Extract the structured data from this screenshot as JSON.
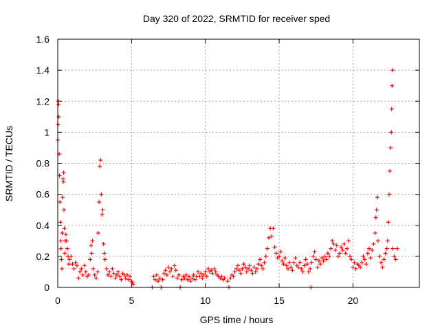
{
  "chart_data": {
    "type": "scatter",
    "title": "Day 320 of 2022, SRMTID for receiver sped",
    "xlabel": "GPS time / hours",
    "ylabel": "SRMTID / TECUs",
    "xlim": [
      0,
      24.5
    ],
    "ylim": [
      0,
      1.6
    ],
    "x_ticks": [
      0,
      5,
      10,
      15,
      20
    ],
    "x_tick_labels": [
      "0",
      "5",
      "10",
      "15",
      "20"
    ],
    "y_ticks": [
      0,
      0.2,
      0.4,
      0.6,
      0.8,
      1.0,
      1.2,
      1.4,
      1.6
    ],
    "y_tick_labels": [
      "0",
      "0.2",
      "0.4",
      "0.6",
      "0.8",
      "1",
      "1.2",
      "1.4",
      "1.6"
    ],
    "grid": true,
    "marker": "+",
    "color": "#ff0000",
    "series": [
      {
        "name": "SRMTID",
        "points": [
          [
            0.0,
            0.95
          ],
          [
            0.02,
            1.05
          ],
          [
            0.04,
            1.2
          ],
          [
            0.05,
            1.18
          ],
          [
            0.07,
            1.1
          ],
          [
            0.1,
            0.86
          ],
          [
            0.12,
            0.72
          ],
          [
            0.15,
            0.55
          ],
          [
            0.18,
            0.42
          ],
          [
            0.2,
            0.3
          ],
          [
            0.22,
            0.25
          ],
          [
            0.25,
            0.18
          ],
          [
            0.28,
            0.12
          ],
          [
            0.3,
            0.35
          ],
          [
            0.33,
            0.58
          ],
          [
            0.36,
            0.7
          ],
          [
            0.38,
            0.68
          ],
          [
            0.4,
            0.74
          ],
          [
            0.42,
            0.5
          ],
          [
            0.45,
            0.38
          ],
          [
            0.48,
            0.22
          ],
          [
            0.5,
            0.3
          ],
          [
            0.55,
            0.34
          ],
          [
            0.6,
            0.3
          ],
          [
            0.65,
            0.25
          ],
          [
            0.7,
            0.2
          ],
          [
            0.75,
            0.15
          ],
          [
            0.8,
            0.18
          ],
          [
            0.9,
            0.2
          ],
          [
            1.0,
            0.15
          ],
          [
            1.1,
            0.12
          ],
          [
            1.2,
            0.16
          ],
          [
            1.3,
            0.14
          ],
          [
            1.4,
            0.06
          ],
          [
            1.5,
            0.1
          ],
          [
            1.6,
            0.12
          ],
          [
            1.7,
            0.08
          ],
          [
            1.8,
            0.14
          ],
          [
            1.9,
            0.1
          ],
          [
            2.0,
            0.07
          ],
          [
            2.1,
            0.08
          ],
          [
            2.2,
            0.18
          ],
          [
            2.25,
            0.27
          ],
          [
            2.3,
            0.22
          ],
          [
            2.35,
            0.3
          ],
          [
            2.4,
            0.12
          ],
          [
            2.5,
            0.08
          ],
          [
            2.6,
            0.06
          ],
          [
            2.7,
            0.1
          ],
          [
            2.75,
            0.35
          ],
          [
            2.8,
            0.55
          ],
          [
            2.85,
            0.78
          ],
          [
            2.9,
            0.82
          ],
          [
            2.95,
            0.6
          ],
          [
            3.0,
            0.47
          ],
          [
            3.05,
            0.5
          ],
          [
            3.1,
            0.28
          ],
          [
            3.15,
            0.22
          ],
          [
            3.2,
            0.18
          ],
          [
            3.3,
            0.12
          ],
          [
            3.4,
            0.08
          ],
          [
            3.5,
            0.1
          ],
          [
            3.6,
            0.07
          ],
          [
            3.7,
            0.12
          ],
          [
            3.8,
            0.09
          ],
          [
            3.9,
            0.06
          ],
          [
            4.0,
            0.08
          ],
          [
            4.1,
            0.1
          ],
          [
            4.2,
            0.07
          ],
          [
            4.3,
            0.05
          ],
          [
            4.4,
            0.09
          ],
          [
            4.5,
            0.08
          ],
          [
            4.6,
            0.06
          ],
          [
            4.7,
            0.08
          ],
          [
            4.8,
            0.05
          ],
          [
            4.9,
            0.07
          ],
          [
            5.0,
            0.04
          ],
          [
            5.05,
            0.03
          ],
          [
            5.1,
            0.02
          ],
          [
            6.4,
            0.0
          ],
          [
            6.5,
            0.07
          ],
          [
            6.6,
            0.05
          ],
          [
            6.7,
            0.08
          ],
          [
            6.8,
            0.04
          ],
          [
            6.9,
            0.06
          ],
          [
            7.0,
            0.0
          ],
          [
            7.1,
            0.05
          ],
          [
            7.2,
            0.09
          ],
          [
            7.3,
            0.11
          ],
          [
            7.4,
            0.08
          ],
          [
            7.5,
            0.13
          ],
          [
            7.6,
            0.1
          ],
          [
            7.7,
            0.12
          ],
          [
            7.8,
            0.07
          ],
          [
            7.9,
            0.14
          ],
          [
            8.0,
            0.11
          ],
          [
            8.1,
            0.06
          ],
          [
            8.2,
            0.08
          ],
          [
            8.3,
            0.0
          ],
          [
            8.4,
            0.05
          ],
          [
            8.5,
            0.07
          ],
          [
            8.6,
            0.06
          ],
          [
            8.7,
            0.08
          ],
          [
            8.8,
            0.05
          ],
          [
            8.9,
            0.07
          ],
          [
            9.0,
            0.04
          ],
          [
            9.1,
            0.06
          ],
          [
            9.2,
            0.08
          ],
          [
            9.3,
            0.05
          ],
          [
            9.4,
            0.07
          ],
          [
            9.5,
            0.1
          ],
          [
            9.6,
            0.07
          ],
          [
            9.7,
            0.09
          ],
          [
            9.8,
            0.06
          ],
          [
            9.9,
            0.08
          ],
          [
            10.0,
            0.1
          ],
          [
            10.1,
            0.07
          ],
          [
            10.2,
            0.12
          ],
          [
            10.3,
            0.1
          ],
          [
            10.4,
            0.11
          ],
          [
            10.5,
            0.09
          ],
          [
            10.6,
            0.12
          ],
          [
            10.7,
            0.1
          ],
          [
            10.8,
            0.08
          ],
          [
            10.9,
            0.07
          ],
          [
            11.0,
            0.06
          ],
          [
            11.1,
            0.07
          ],
          [
            11.2,
            0.05
          ],
          [
            11.3,
            0.06
          ],
          [
            11.5,
            0.04
          ],
          [
            11.6,
            0.0
          ],
          [
            11.7,
            0.06
          ],
          [
            11.8,
            0.08
          ],
          [
            11.9,
            0.07
          ],
          [
            12.0,
            0.1
          ],
          [
            12.1,
            0.12
          ],
          [
            12.2,
            0.14
          ],
          [
            12.3,
            0.11
          ],
          [
            12.4,
            0.09
          ],
          [
            12.5,
            0.12
          ],
          [
            12.6,
            0.15
          ],
          [
            12.7,
            0.13
          ],
          [
            12.8,
            0.1
          ],
          [
            12.9,
            0.12
          ],
          [
            13.0,
            0.14
          ],
          [
            13.1,
            0.11
          ],
          [
            13.2,
            0.09
          ],
          [
            13.3,
            0.13
          ],
          [
            13.4,
            0.1
          ],
          [
            13.5,
            0.12
          ],
          [
            13.6,
            0.15
          ],
          [
            13.7,
            0.18
          ],
          [
            13.8,
            0.14
          ],
          [
            13.9,
            0.12
          ],
          [
            14.0,
            0.16
          ],
          [
            14.1,
            0.2
          ],
          [
            14.2,
            0.25
          ],
          [
            14.3,
            0.32
          ],
          [
            14.4,
            0.38
          ],
          [
            14.5,
            0.33
          ],
          [
            14.6,
            0.38
          ],
          [
            14.7,
            0.26
          ],
          [
            14.8,
            0.22
          ],
          [
            14.9,
            0.19
          ],
          [
            15.0,
            0.2
          ],
          [
            15.1,
            0.23
          ],
          [
            15.2,
            0.17
          ],
          [
            15.3,
            0.15
          ],
          [
            15.4,
            0.19
          ],
          [
            15.5,
            0.14
          ],
          [
            15.6,
            0.12
          ],
          [
            15.7,
            0.16
          ],
          [
            15.8,
            0.13
          ],
          [
            15.9,
            0.11
          ],
          [
            16.0,
            0.16
          ],
          [
            16.1,
            0.19
          ],
          [
            16.2,
            0.14
          ],
          [
            16.3,
            0.13
          ],
          [
            16.4,
            0.16
          ],
          [
            16.5,
            0.12
          ],
          [
            16.6,
            0.1
          ],
          [
            16.7,
            0.14
          ],
          [
            16.8,
            0.18
          ],
          [
            16.9,
            0.15
          ],
          [
            17.0,
            0.1
          ],
          [
            17.1,
            0.12
          ],
          [
            17.15,
            0.0
          ],
          [
            17.2,
            0.16
          ],
          [
            17.3,
            0.2
          ],
          [
            17.4,
            0.23
          ],
          [
            17.5,
            0.18
          ],
          [
            17.6,
            0.13
          ],
          [
            17.7,
            0.17
          ],
          [
            17.8,
            0.15
          ],
          [
            17.9,
            0.19
          ],
          [
            18.0,
            0.17
          ],
          [
            18.1,
            0.2
          ],
          [
            18.2,
            0.18
          ],
          [
            18.3,
            0.22
          ],
          [
            18.4,
            0.2
          ],
          [
            18.5,
            0.25
          ],
          [
            18.6,
            0.3
          ],
          [
            18.7,
            0.28
          ],
          [
            18.8,
            0.24
          ],
          [
            18.9,
            0.27
          ],
          [
            19.0,
            0.2
          ],
          [
            19.1,
            0.22
          ],
          [
            19.2,
            0.26
          ],
          [
            19.3,
            0.24
          ],
          [
            19.4,
            0.28
          ],
          [
            19.5,
            0.22
          ],
          [
            19.6,
            0.25
          ],
          [
            19.7,
            0.3
          ],
          [
            19.8,
            0.2
          ],
          [
            19.9,
            0.18
          ],
          [
            20.0,
            0.13
          ],
          [
            20.1,
            0.16
          ],
          [
            20.2,
            0.12
          ],
          [
            20.3,
            0.15
          ],
          [
            20.4,
            0.14
          ],
          [
            20.5,
            0.13
          ],
          [
            20.6,
            0.16
          ],
          [
            20.7,
            0.2
          ],
          [
            20.8,
            0.18
          ],
          [
            20.9,
            0.15
          ],
          [
            21.0,
            0.22
          ],
          [
            21.1,
            0.25
          ],
          [
            21.2,
            0.19
          ],
          [
            21.3,
            0.24
          ],
          [
            21.4,
            0.28
          ],
          [
            21.5,
            0.35
          ],
          [
            21.55,
            0.45
          ],
          [
            21.6,
            0.5
          ],
          [
            21.65,
            0.58
          ],
          [
            21.7,
            0.3
          ],
          [
            21.8,
            0.2
          ],
          [
            21.9,
            0.16
          ],
          [
            22.0,
            0.13
          ],
          [
            22.1,
            0.18
          ],
          [
            22.2,
            0.22
          ],
          [
            22.3,
            0.25
          ],
          [
            22.35,
            0.3
          ],
          [
            22.4,
            0.42
          ],
          [
            22.45,
            0.6
          ],
          [
            22.5,
            0.75
          ],
          [
            22.55,
            0.9
          ],
          [
            22.6,
            1.0
          ],
          [
            22.62,
            1.15
          ],
          [
            22.65,
            1.3
          ],
          [
            22.68,
            1.4
          ],
          [
            22.7,
            0.25
          ],
          [
            22.8,
            0.2
          ],
          [
            22.9,
            0.18
          ],
          [
            23.0,
            0.25
          ]
        ]
      }
    ]
  }
}
